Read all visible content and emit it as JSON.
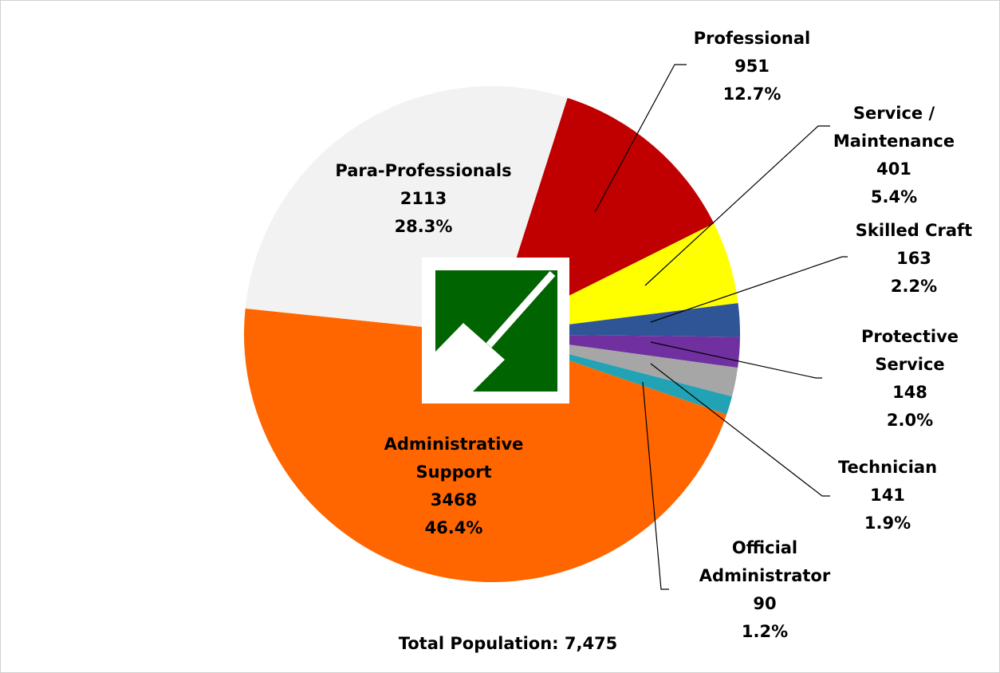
{
  "chart_data": {
    "type": "pie",
    "categories": [
      "Professional",
      "Service / Maintenance",
      "Skilled Craft",
      "Protective Service",
      "Technician",
      "Official Administrator",
      "Administrative Support",
      "Para-Professionals"
    ],
    "values": [
      951,
      401,
      163,
      148,
      141,
      90,
      3468,
      2113
    ],
    "percent_labels": [
      "12.7%",
      "5.4%",
      "2.2%",
      "2.0%",
      "1.9%",
      "1.2%",
      "46.4%",
      "28.3%"
    ],
    "colors": [
      "#c00000",
      "#ffff00",
      "#2f5597",
      "#7030a0",
      "#a6a6a6",
      "#21a3b5",
      "#ff6600",
      "#f2f2f2"
    ],
    "annotation": "Total Population: 7,475"
  }
}
